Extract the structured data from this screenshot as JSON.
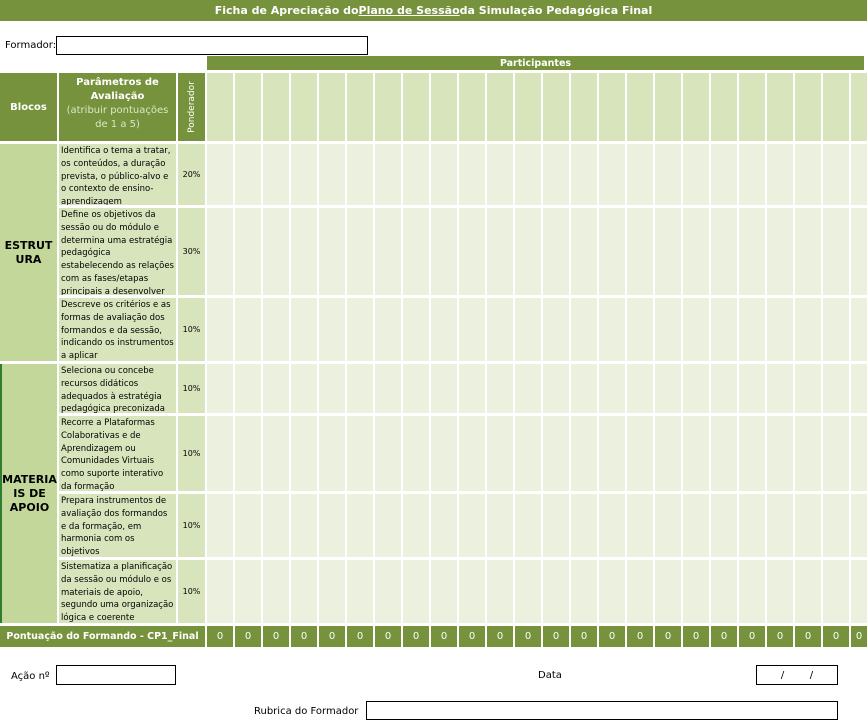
{
  "title": {
    "pre": "Ficha de Apreciação do ",
    "link": "Plano de Sessão",
    "post": " da Simulação Pedagógica Final"
  },
  "formador_label": "Formador:",
  "participantes_label": "Participantes",
  "headers": {
    "blocos": "Blocos",
    "parametros": "Parâmetros de Avaliação",
    "parametros_sub": "(atribuir pontuações de 1 a 5)",
    "ponderador": "Ponderador"
  },
  "blocks": [
    {
      "name": "ESTRUTURA",
      "line1": "ESTRUT",
      "line2": "URA",
      "items": [
        {
          "text": "Identifica o tema a tratar, os conteúdos, a duração prevista, o público-alvo e o contexto de ensino-aprendizagem",
          "weight": "20%"
        },
        {
          "text": "Define os objetivos da sessão ou do módulo e determina uma estratégia pedagógica estabelecendo as relações com as fases/etapas principais a desenvolver",
          "weight": "30%"
        },
        {
          "text": "Descreve os critérios e as formas de avaliação dos formandos e da sessão, indicando os instrumentos a aplicar",
          "weight": "10%"
        }
      ]
    },
    {
      "name": "MATERIAIS DE APOIO",
      "line1": "MATERIA",
      "line2": "IS DE",
      "line3": "APOIO",
      "items": [
        {
          "text": "Seleciona ou concebe recursos didáticos adequados à estratégia pedagógica preconizada",
          "weight": "10%"
        },
        {
          "text": "Recorre a Plataformas Colaborativas e de Aprendizagem ou Comunidades Virtuais como suporte interativo da formação",
          "weight": "10%"
        },
        {
          "text": "Prepara instrumentos de avaliação dos formandos e da formação, em harmonia com os objetivos",
          "weight": "10%"
        },
        {
          "text": "Sistematiza a planificação da sessão ou módulo e os materiais de apoio, segundo uma organização lógica e coerente",
          "weight": "10%"
        }
      ]
    }
  ],
  "score_label": "Pontuação do Formando - CP1_Final",
  "scores": [
    "0",
    "0",
    "0",
    "0",
    "0",
    "0",
    "0",
    "0",
    "0",
    "0",
    "0",
    "0",
    "0",
    "0",
    "0",
    "0",
    "0",
    "0",
    "0",
    "0",
    "0",
    "0",
    "0",
    "0"
  ],
  "acao_label": "Ação nº",
  "data_label": "Data",
  "date_value": "/        /",
  "rubrica_label": "Rubrica do Formador",
  "colors": {
    "header_green": "#76923c",
    "block_green": "#c4d79b",
    "param_green": "#d8e4bc",
    "cell_green": "#ebf1de"
  }
}
